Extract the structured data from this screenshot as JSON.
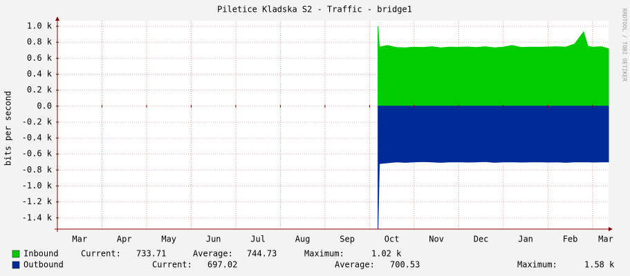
{
  "chart_data": {
    "type": "area",
    "title": "Piletice Kladska S2 - Traffic - bridge1",
    "y_label": "bits per second",
    "side_note": "RRDTOOL / TOBI OETIKER",
    "xlim": [
      0,
      12.36
    ],
    "xticks": [
      {
        "value": 0,
        "label": "Mar"
      },
      {
        "value": 1,
        "label": "Apr"
      },
      {
        "value": 2,
        "label": "May"
      },
      {
        "value": 3,
        "label": "Jun"
      },
      {
        "value": 4,
        "label": "Jul"
      },
      {
        "value": 5,
        "label": "Aug"
      },
      {
        "value": 6,
        "label": "Sep"
      },
      {
        "value": 7,
        "label": "Oct"
      },
      {
        "value": 8,
        "label": "Nov"
      },
      {
        "value": 9,
        "label": "Dec"
      },
      {
        "value": 10,
        "label": "Jan"
      },
      {
        "value": 11,
        "label": "Feb"
      },
      {
        "value": 12,
        "label": "Mar"
      }
    ],
    "ylim": [
      -1540,
      1070
    ],
    "yticks": [
      {
        "value": 1000,
        "label": "1.0 k"
      },
      {
        "value": 800,
        "label": "0.8 k"
      },
      {
        "value": 600,
        "label": "0.6 k"
      },
      {
        "value": 400,
        "label": "0.4 k"
      },
      {
        "value": 200,
        "label": "0.2 k"
      },
      {
        "value": 0,
        "label": "0.0"
      },
      {
        "value": -200,
        "label": "-0.2 k"
      },
      {
        "value": -400,
        "label": "-0.4 k"
      },
      {
        "value": -600,
        "label": "-0.6 k"
      },
      {
        "value": -800,
        "label": "-0.8 k"
      },
      {
        "value": -1000,
        "label": "-1.0 k"
      },
      {
        "value": -1200,
        "label": "-1.2 k"
      },
      {
        "value": -1400,
        "label": "-1.4 k"
      }
    ],
    "grid": true,
    "x": [
      7.19,
      7.22,
      7.4,
      7.6,
      7.8,
      8.0,
      8.2,
      8.4,
      8.6,
      8.8,
      9.0,
      9.2,
      9.4,
      9.6,
      9.8,
      10.0,
      10.2,
      10.4,
      10.6,
      10.8,
      11.0,
      11.2,
      11.4,
      11.6,
      11.8,
      11.9,
      12.0,
      12.2,
      12.36
    ],
    "series": [
      {
        "name": "Inbound",
        "color": "#00cc00",
        "current": "733.71",
        "average": "744.73",
        "maximum": "1.02 k",
        "values": [
          1000,
          740,
          760,
          735,
          730,
          740,
          735,
          745,
          730,
          740,
          738,
          742,
          735,
          745,
          730,
          740,
          760,
          735,
          740,
          738,
          742,
          745,
          740,
          780,
          930,
          750,
          740,
          745,
          720
        ]
      },
      {
        "name": "Outbound",
        "color": "#002a97",
        "current": "697.02",
        "average": "700.53",
        "maximum": "1.58 k",
        "values": [
          -1540,
          -720,
          -710,
          -700,
          -705,
          -700,
          -695,
          -700,
          -705,
          -700,
          -698,
          -702,
          -700,
          -695,
          -705,
          -700,
          -698,
          -702,
          -700,
          -698,
          -702,
          -700,
          -705,
          -700,
          -700,
          -698,
          -702,
          -700,
          -700
        ]
      }
    ],
    "legend_labels": {
      "current": "Current:",
      "average": "Average:",
      "maximum": "Maximum:"
    }
  }
}
